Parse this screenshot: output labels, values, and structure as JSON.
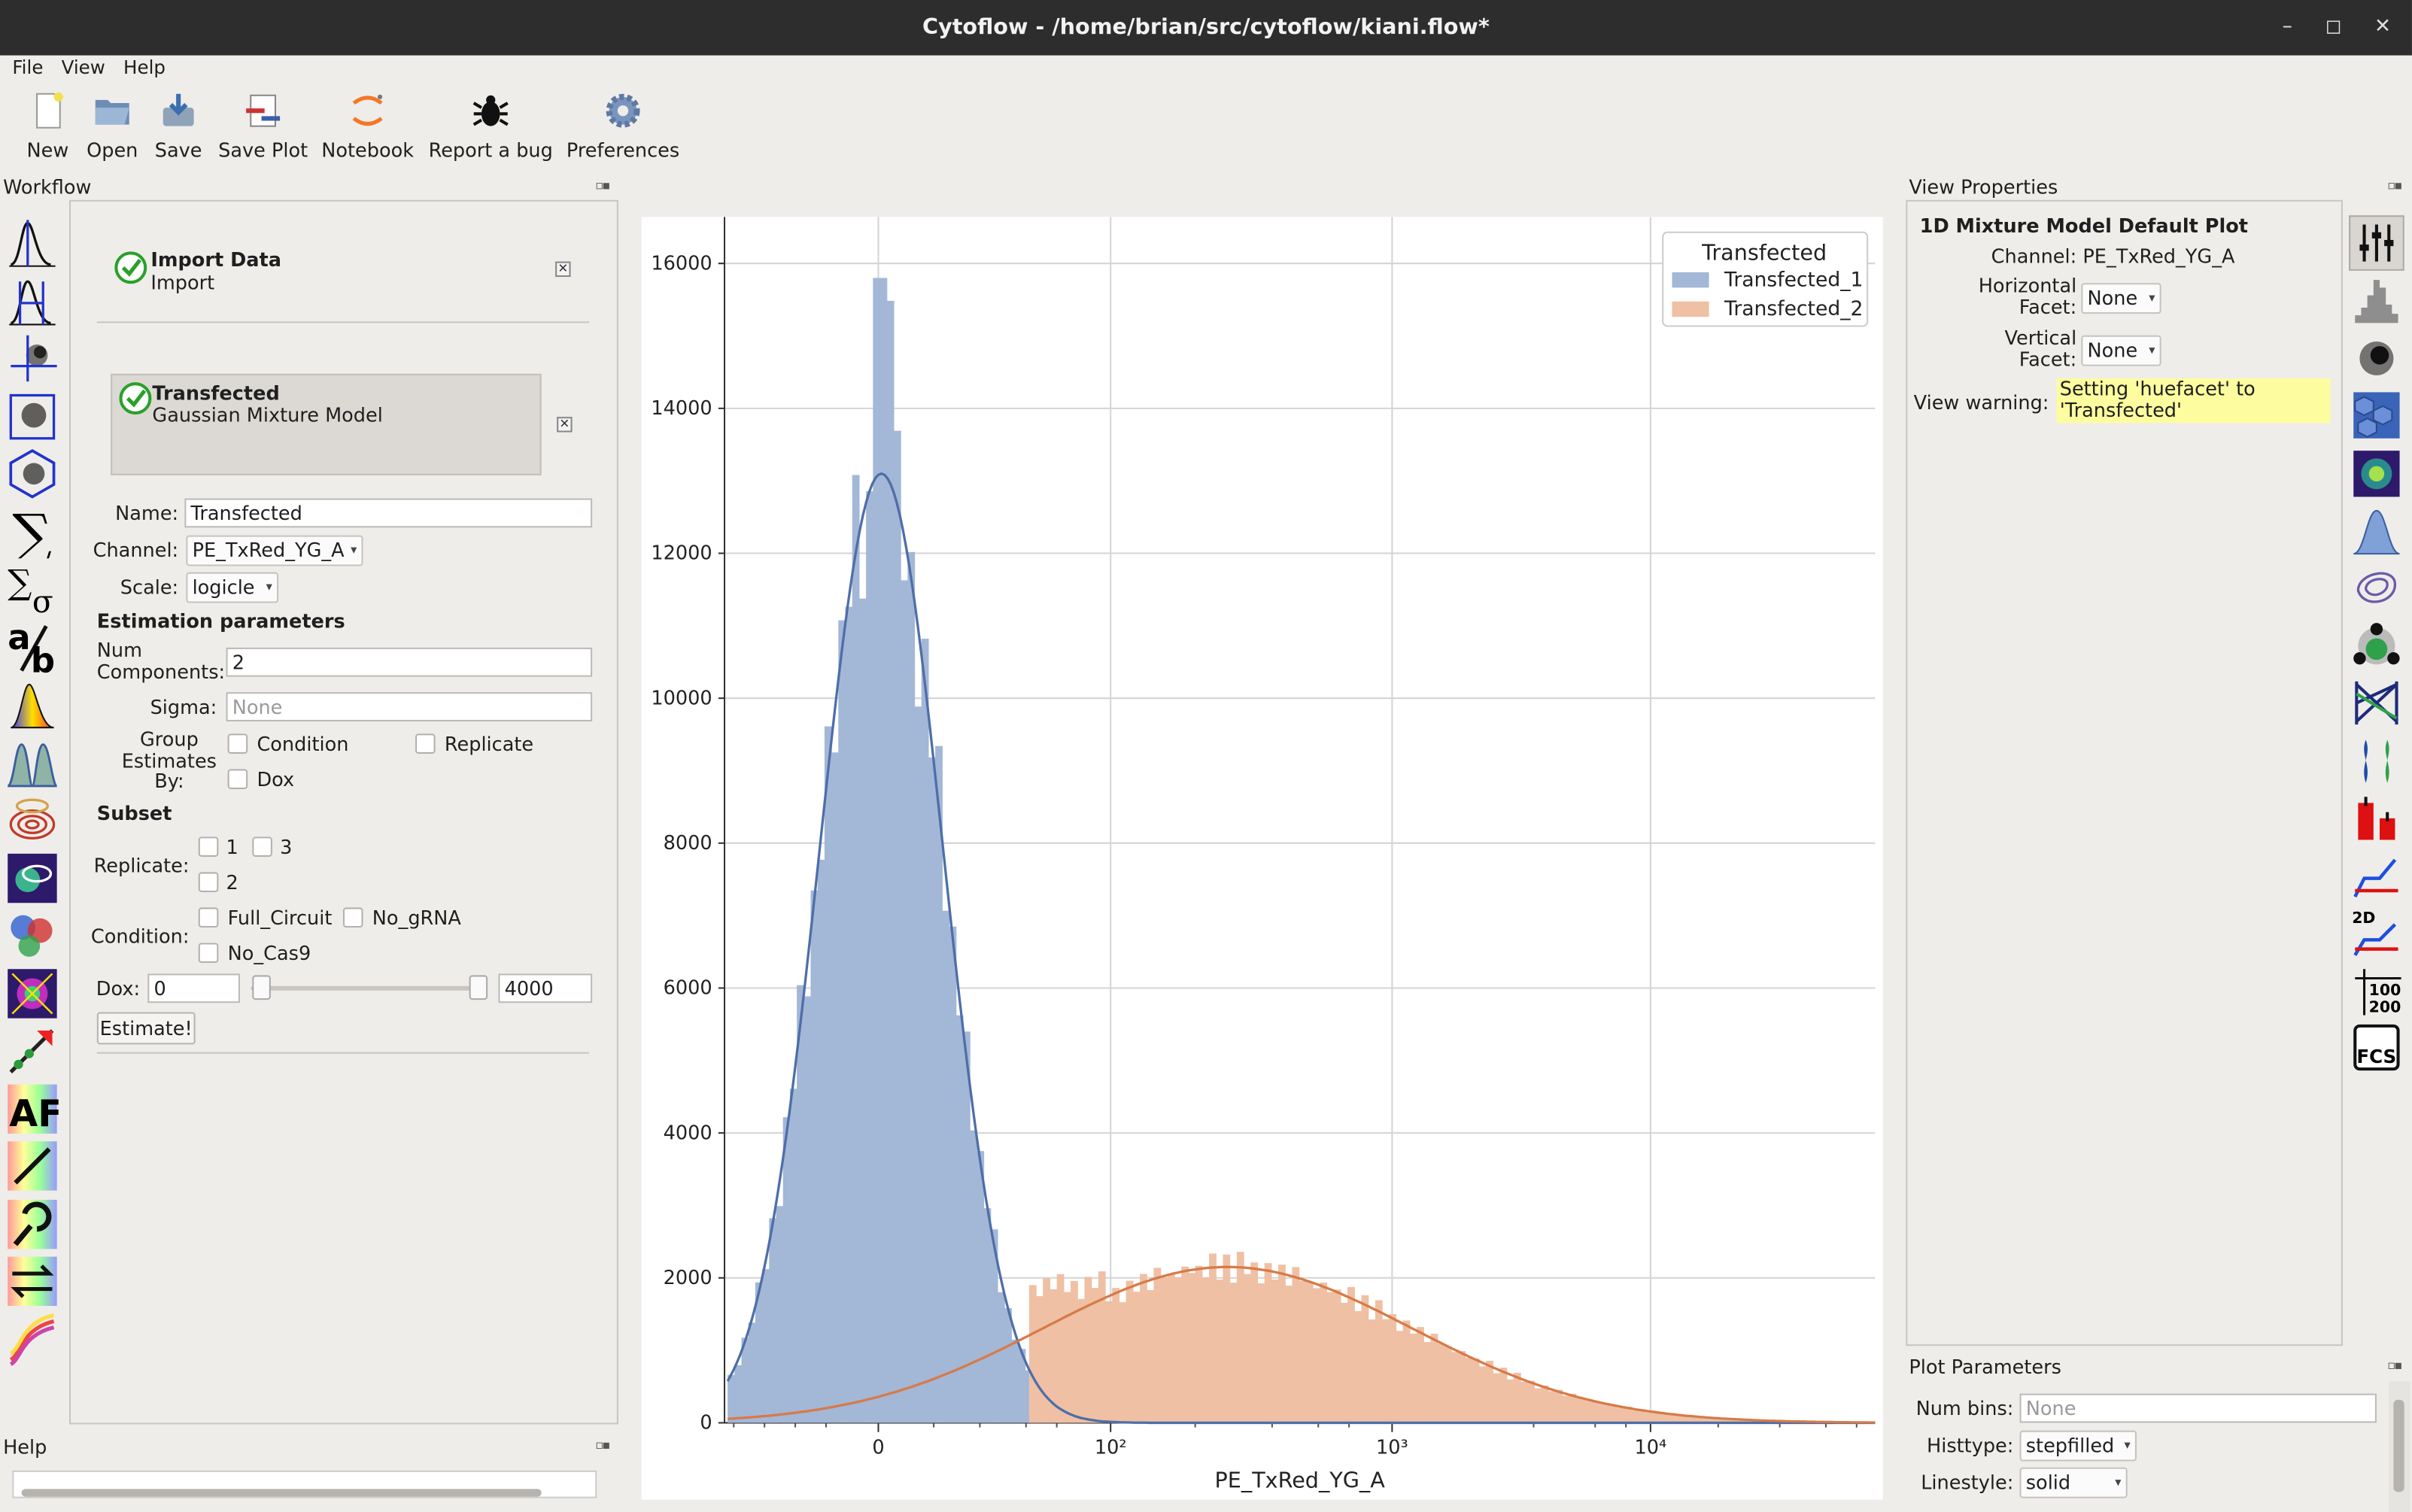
{
  "window": {
    "title": "Cytoflow - /home/brian/src/cytoflow/kiani.flow*",
    "minimize": "–",
    "maximize": "◻",
    "close": "✕"
  },
  "menu": [
    "File",
    "View",
    "Help"
  ],
  "toolbar": [
    {
      "label": "New",
      "icon": "new-file-icon"
    },
    {
      "label": "Open",
      "icon": "open-folder-icon"
    },
    {
      "label": "Save",
      "icon": "save-icon"
    },
    {
      "label": "Save Plot",
      "icon": "save-plot-icon"
    },
    {
      "label": "Notebook",
      "icon": "jupyter-icon"
    },
    {
      "label": "Report a bug",
      "icon": "bug-icon"
    },
    {
      "label": "Preferences",
      "icon": "gear-icon"
    }
  ],
  "workflow": {
    "title": "Workflow",
    "items": [
      {
        "name": "Import Data",
        "type": "Import",
        "status": "ok"
      },
      {
        "name": "Transfected",
        "type": "Gaussian Mixture Model",
        "status": "ok",
        "selected": true
      }
    ],
    "form": {
      "name_label": "Name:",
      "name_value": "Transfected",
      "channel_label": "Channel:",
      "channel_value": "PE_TxRed_YG_A",
      "scale_label": "Scale:",
      "scale_value": "logicle",
      "estimation_header": "Estimation parameters",
      "num_components_label": "Num Components:",
      "num_components_value": "2",
      "sigma_label": "Sigma:",
      "sigma_placeholder": "None",
      "group_label": "Group Estimates By:",
      "group_options": [
        "Condition",
        "Replicate",
        "Dox"
      ],
      "subset_header": "Subset",
      "replicate_label": "Replicate:",
      "replicate_options": [
        "1",
        "3",
        "2"
      ],
      "condition_label": "Condition:",
      "condition_options": [
        "Full_Circuit",
        "No_gRNA",
        "No_Cas9"
      ],
      "dox_label": "Dox:",
      "dox_min": "0",
      "dox_max": "4000",
      "estimate_button": "Estimate!"
    }
  },
  "help": {
    "title": "Help"
  },
  "view_properties": {
    "title": "View Properties",
    "heading": "1D Mixture Model Default Plot",
    "channel_label": "Channel:",
    "channel_value": "PE_TxRed_YG_A",
    "hfacet_label": "Horizontal Facet:",
    "hfacet_value": "None",
    "vfacet_label": "Vertical Facet:",
    "vfacet_value": "None",
    "warning_label": "View warning:",
    "warning_text": "Setting 'huefacet' to 'Transfected'"
  },
  "plot_parameters": {
    "title": "Plot Parameters",
    "num_bins_label": "Num bins:",
    "num_bins_placeholder": "None",
    "histtype_label": "Histtype:",
    "histtype_value": "stepfilled",
    "linestyle_label": "Linestyle:",
    "linestyle_value": "solid"
  },
  "colors": {
    "series1": "#a3b7d7",
    "series2": "#efc0a4",
    "curve1": "#4e6ea8",
    "curve2": "#d77a48",
    "warning_bg": "#fdfd9f"
  },
  "chart_data": {
    "type": "histogram",
    "xlabel": "PE_TxRed_YG_A",
    "ylabel": "",
    "x_scale": "logicle",
    "x_ticks": [
      "0",
      "10²",
      "10³",
      "10⁴"
    ],
    "y_ticks": [
      "0",
      "2000",
      "4000",
      "6000",
      "8000",
      "10000",
      "12000",
      "14000",
      "16000"
    ],
    "ylim": [
      0,
      16600
    ],
    "grid": true,
    "legend": {
      "title": "Transfected",
      "position": "top-right",
      "entries": [
        "Transfected_1",
        "Transfected_2"
      ]
    },
    "series": [
      {
        "name": "Transfected_1",
        "peak": 15800,
        "fit_peak": 13100
      },
      {
        "name": "Transfected_2",
        "peak": 2600,
        "fit_peak": 2150
      }
    ]
  }
}
